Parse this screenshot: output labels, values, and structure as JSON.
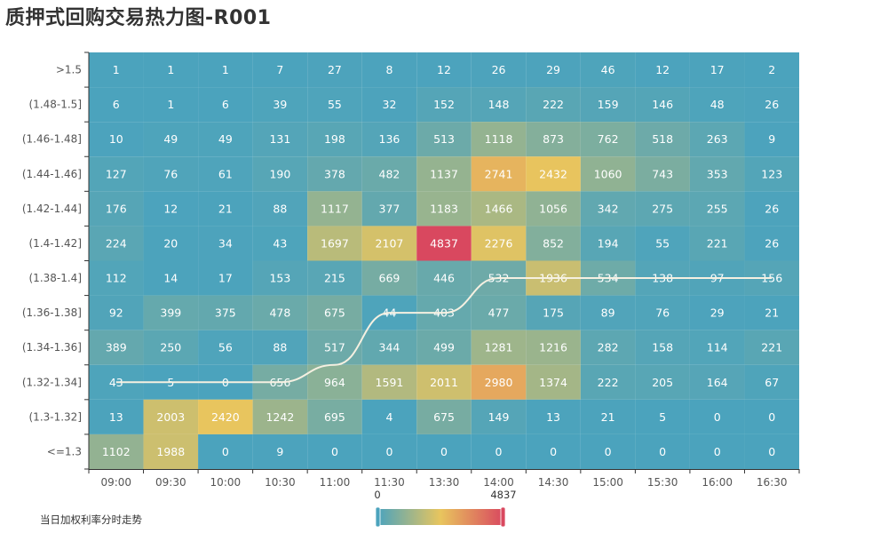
{
  "title": "质押式回购交易热力图-R001",
  "legend_label": "当日加权利率分时走势",
  "visual_map": {
    "min_label": "0",
    "max_label": "4837",
    "colors": [
      "#4ba3bd",
      "#e8c55e",
      "#d9485f"
    ]
  },
  "chart_data": {
    "type": "heatmap",
    "title": "质押式回购交易热力图-R001",
    "x_categories": [
      "09:00",
      "09:30",
      "10:00",
      "10:30",
      "11:00",
      "11:30",
      "13:30",
      "14:00",
      "14:30",
      "15:00",
      "15:30",
      "16:00",
      "16:30"
    ],
    "y_categories": [
      ">1.5",
      "(1.48-1.5]",
      "(1.46-1.48]",
      "(1.44-1.46]",
      "(1.42-1.44]",
      "(1.4-1.42]",
      "(1.38-1.4]",
      "(1.36-1.38]",
      "(1.34-1.36]",
      "(1.32-1.34]",
      "(1.3-1.32]",
      "<=1.3"
    ],
    "values": [
      [
        1,
        1,
        1,
        7,
        27,
        8,
        12,
        26,
        29,
        46,
        12,
        17,
        2
      ],
      [
        6,
        1,
        6,
        39,
        55,
        32,
        152,
        148,
        222,
        159,
        146,
        48,
        26
      ],
      [
        10,
        49,
        49,
        131,
        198,
        136,
        513,
        1118,
        873,
        762,
        518,
        263,
        9
      ],
      [
        127,
        76,
        61,
        190,
        378,
        482,
        1137,
        2741,
        2432,
        1060,
        743,
        353,
        123
      ],
      [
        176,
        12,
        21,
        88,
        1117,
        377,
        1183,
        1466,
        1056,
        342,
        275,
        255,
        26
      ],
      [
        224,
        20,
        34,
        43,
        1697,
        2107,
        4837,
        2276,
        852,
        194,
        55,
        221,
        26
      ],
      [
        112,
        14,
        17,
        153,
        215,
        669,
        446,
        532,
        1936,
        534,
        138,
        97,
        156
      ],
      [
        92,
        399,
        375,
        478,
        675,
        44,
        403,
        477,
        175,
        89,
        76,
        29,
        21
      ],
      [
        389,
        250,
        56,
        88,
        517,
        344,
        499,
        1281,
        1216,
        282,
        158,
        114,
        221
      ],
      [
        43,
        5,
        0,
        656,
        964,
        1591,
        2011,
        2980,
        1374,
        222,
        205,
        164,
        67
      ],
      [
        13,
        2003,
        2420,
        1242,
        695,
        4,
        675,
        149,
        13,
        21,
        5,
        0,
        0
      ],
      [
        1102,
        1988,
        0,
        9,
        0,
        0,
        0,
        0,
        0,
        0,
        0,
        0,
        0
      ]
    ],
    "value_range": [
      0,
      4837
    ],
    "line_series": {
      "name": "当日加权利率分时走势",
      "color": "#f5f0e1",
      "y_rows": [
        9,
        9,
        9,
        9,
        8.5,
        7,
        7,
        6,
        6,
        6,
        6,
        6,
        6
      ]
    }
  }
}
